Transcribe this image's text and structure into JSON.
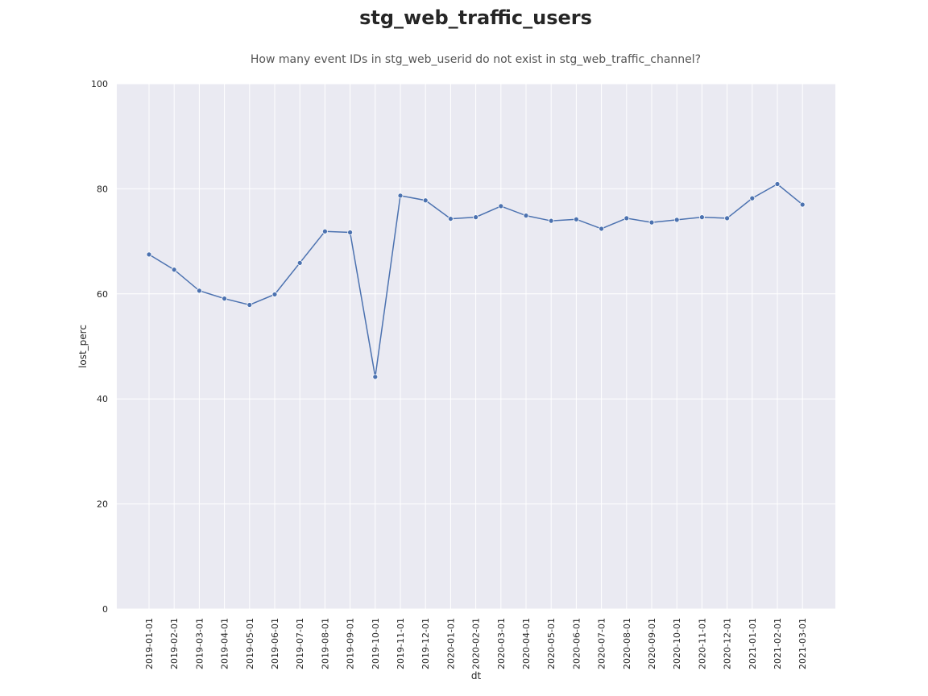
{
  "chart_data": {
    "type": "line",
    "title": "stg_web_traffic_users",
    "subtitle": "How many event IDs in stg_web_userid do not exist in stg_web_traffic_channel?",
    "xlabel": "dt",
    "ylabel": "lost_perc",
    "ylim": [
      0,
      100
    ],
    "yticks": [
      0,
      20,
      40,
      60,
      80,
      100
    ],
    "grid": true,
    "categories": [
      "2019-01-01",
      "2019-02-01",
      "2019-03-01",
      "2019-04-01",
      "2019-05-01",
      "2019-06-01",
      "2019-07-01",
      "2019-08-01",
      "2019-09-01",
      "2019-10-01",
      "2019-11-01",
      "2019-12-01",
      "2020-01-01",
      "2020-02-01",
      "2020-03-01",
      "2020-04-01",
      "2020-05-01",
      "2020-06-01",
      "2020-07-01",
      "2020-08-01",
      "2020-09-01",
      "2020-10-01",
      "2020-11-01",
      "2020-12-01",
      "2021-01-01",
      "2021-02-01",
      "2021-03-01"
    ],
    "series": [
      {
        "color": "#4c72b0",
        "values": [
          67.5,
          64.6,
          60.6,
          59.1,
          57.9,
          59.9,
          65.9,
          71.9,
          71.7,
          44.2,
          78.7,
          77.8,
          74.3,
          74.6,
          76.7,
          74.9,
          73.9,
          74.2,
          72.4,
          74.4,
          73.6,
          74.1,
          74.6,
          74.4,
          78.2,
          80.9,
          77.0
        ]
      }
    ],
    "colors": {
      "plot_bg": "#eaeaf2",
      "grid": "#ffffff"
    }
  }
}
